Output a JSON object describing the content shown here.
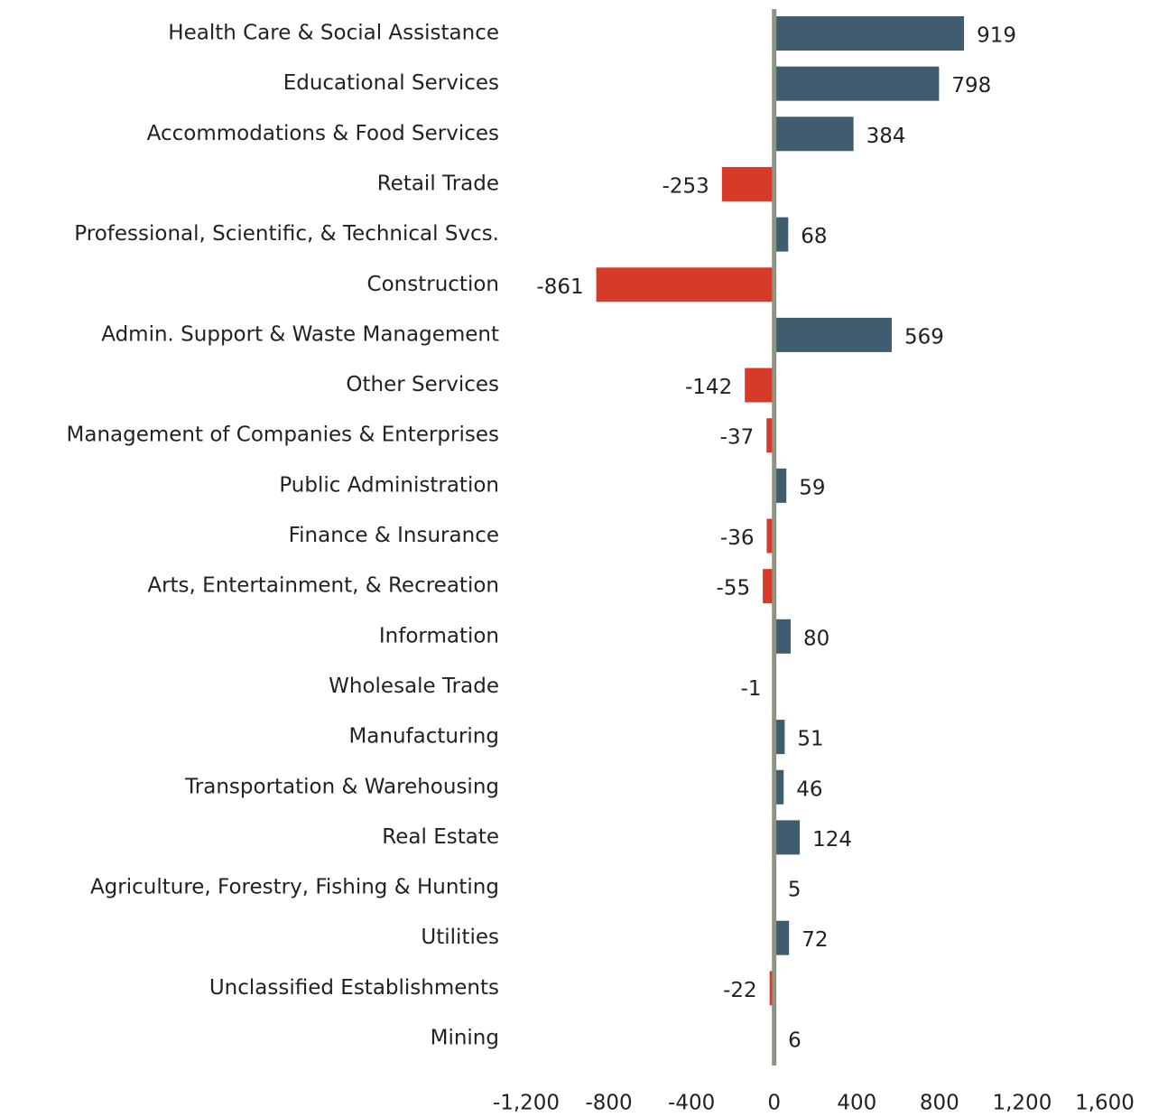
{
  "chart_data": {
    "type": "hbar",
    "categories": [
      "Health Care & Social Assistance",
      "Educational Services",
      "Accommodations & Food Services",
      "Retail Trade",
      "Professional, Scientific, & Technical Svcs.",
      "Construction",
      "Admin. Support & Waste Management",
      "Other Services",
      "Management of Companies & Enterprises",
      "Public Administration",
      "Finance & Insurance",
      "Arts, Entertainment, & Recreation",
      "Information",
      "Wholesale Trade",
      "Manufacturing",
      "Transportation & Warehousing",
      "Real Estate",
      "Agriculture, Forestry, Fishing & Hunting",
      "Utilities",
      "Unclassified Establishments",
      "Mining"
    ],
    "values": [
      919,
      798,
      384,
      -253,
      68,
      -861,
      569,
      -142,
      -37,
      59,
      -36,
      -55,
      80,
      -1,
      51,
      46,
      124,
      5,
      72,
      -22,
      6
    ],
    "colors": {
      "positive": "#3f5d6f",
      "negative": "#d63a29"
    },
    "xlim": [
      -1200,
      1600
    ],
    "xticks": [
      {
        "value": -1200,
        "label": "-1,200"
      },
      -800,
      -400,
      0,
      400,
      800,
      {
        "value": 1200,
        "label": "1,200"
      },
      {
        "value": 1600,
        "label": "1,600"
      }
    ]
  }
}
